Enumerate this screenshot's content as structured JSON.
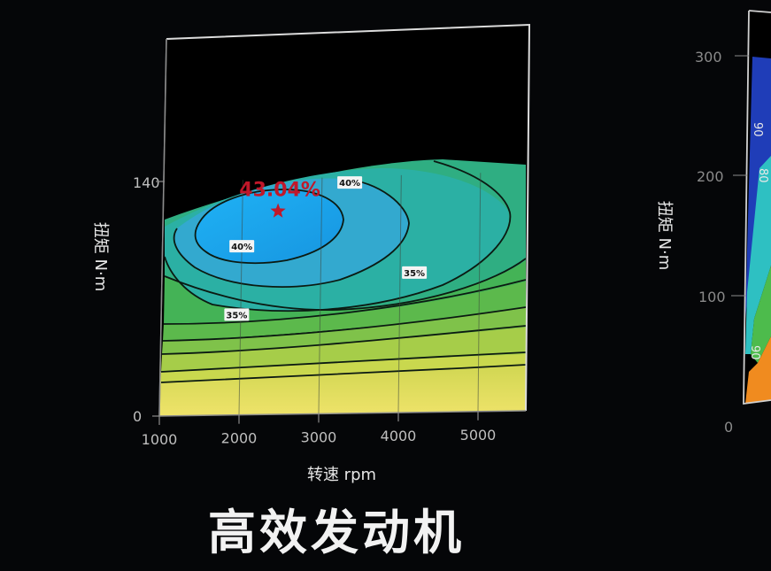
{
  "caption": "高效发动机",
  "chart_data": [
    {
      "type": "heatmap",
      "subtype": "efficiency contour map",
      "xlabel": "转速 rpm",
      "ylabel": "扭矩 N·m",
      "xticks": [
        "1000",
        "2000",
        "3000",
        "4000",
        "5000"
      ],
      "yticks": [
        "0",
        "140"
      ],
      "xlim": [
        1000,
        5600
      ],
      "ylim": [
        0,
        200
      ],
      "grid": "vertical",
      "peak": {
        "label": "43.04%",
        "rpm": 2450,
        "torque": 107,
        "marker": "star"
      },
      "contour_labels": [
        {
          "text": "40%",
          "rpm": 3350,
          "torque": 121
        },
        {
          "text": "40%",
          "rpm": 2000,
          "torque": 89
        },
        {
          "text": "35%",
          "rpm": 4180,
          "torque": 73
        },
        {
          "text": "35%",
          "rpm": 1950,
          "torque": 53
        }
      ],
      "colors": {
        "yellow": "#e6de58",
        "green": "#4fb84f",
        "teal": "#2eb39a",
        "cyan": "#35a8d4",
        "blue": "#1aa8f0",
        "contour_line": "#0b1a12",
        "peak": "#c0182a"
      }
    },
    {
      "type": "heatmap",
      "subtype": "efficiency contour map (partially visible)",
      "ylabel": "扭矩 N·m",
      "yticks": [
        "0",
        "100",
        "200",
        "300"
      ],
      "visible_contour_labels": [
        "90",
        "80",
        "90"
      ]
    }
  ]
}
